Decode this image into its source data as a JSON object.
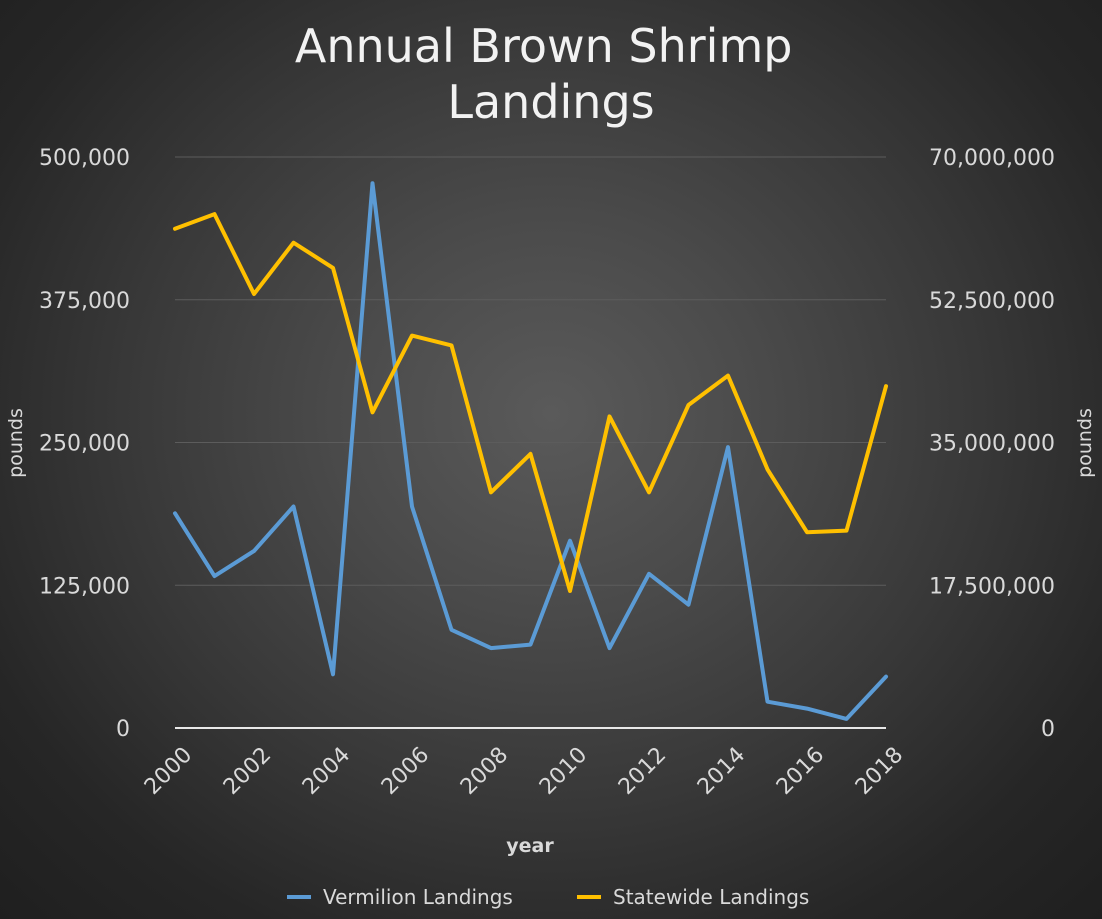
{
  "chart_data": {
    "type": "line",
    "title": "Annual Brown Shrimp Landings",
    "xlabel": "year",
    "ylabel": "pounds",
    "y2label": "pounds",
    "x": [
      2000,
      2001,
      2002,
      2003,
      2004,
      2005,
      2006,
      2007,
      2008,
      2009,
      2010,
      2011,
      2012,
      2013,
      2014,
      2015,
      2016,
      2017,
      2018
    ],
    "x_tick_labels": [
      "2000",
      "2002",
      "2004",
      "2006",
      "2008",
      "2010",
      "2012",
      "2014",
      "2016",
      "2018"
    ],
    "ylim": [
      0,
      500000
    ],
    "y_tick_labels": [
      "0",
      "125,000",
      "250,000",
      "375,000",
      "500,000"
    ],
    "y2lim": [
      0,
      70000000
    ],
    "y2_tick_labels": [
      "0",
      "17,500,000",
      "35,000,000",
      "52,500,000",
      "70,000,000"
    ],
    "grid": true,
    "legend_position": "bottom",
    "series": [
      {
        "name": "Vermilion Landings",
        "axis": "left",
        "color": "#5b9bd5",
        "values": [
          188000,
          133000,
          155000,
          194000,
          47000,
          477000,
          194000,
          86000,
          70000,
          73000,
          164000,
          70000,
          135000,
          108000,
          246000,
          23000,
          17000,
          8000,
          45000
        ]
      },
      {
        "name": "Statewide Landings",
        "axis": "right",
        "color": "#ffc000",
        "values": [
          61200000,
          63000000,
          53200000,
          59500000,
          56400000,
          38700000,
          48100000,
          46900000,
          28900000,
          33600000,
          16800000,
          38200000,
          28900000,
          39600000,
          43200000,
          31700000,
          24000000,
          24200000,
          41900000
        ]
      }
    ]
  }
}
